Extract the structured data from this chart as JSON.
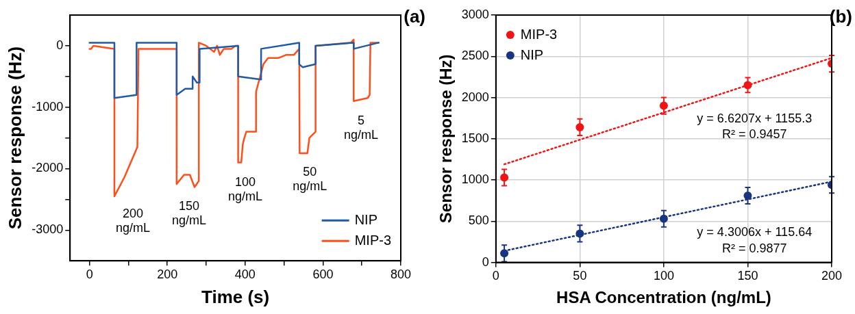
{
  "chart_data": [
    {
      "type": "line",
      "xlabel": "Time (s)",
      "ylabel": "Sensor response (Hz)",
      "xlim": [
        -50,
        800
      ],
      "xticks": [
        0,
        {
          "value": 100,
          "label": null
        },
        200,
        {
          "value": 300,
          "label": null
        },
        400,
        {
          "value": 500,
          "label": null
        },
        600,
        {
          "value": 700,
          "label": null
        },
        800
      ],
      "ylim": [
        -3500,
        500
      ],
      "yticks": [
        -3000,
        {
          "value": -2500,
          "label": null
        },
        -2000,
        {
          "value": -1500,
          "label": null
        },
        -1000,
        {
          "value": -500,
          "label": null
        },
        0
      ],
      "grid": false,
      "legend": "bottom right",
      "marker": "none",
      "line_style": "solid",
      "annotations": [
        "(a)",
        "200 ng/mL",
        "150 ng/mL",
        "100 ng/mL",
        "50 ng/mL",
        "5 ng/mL"
      ],
      "series": [
        {
          "name": "NIP",
          "color": "#1f5aa6",
          "x": [
            0,
            64,
            64,
            121,
            121,
            224,
            224,
            246,
            265,
            265,
            276,
            283,
            283,
            382,
            382,
            441,
            441,
            539,
            539,
            548,
            581,
            581,
            679,
            679,
            743
          ],
          "values": [
            50,
            50,
            -850,
            -800,
            50,
            50,
            -800,
            -700,
            -700,
            -500,
            -600,
            -600,
            -50,
            0,
            -500,
            -550,
            -50,
            50,
            -300,
            -350,
            -300,
            0,
            50,
            -50,
            50
          ]
        },
        {
          "name": "MIP-3",
          "color": "#ff4e1a",
          "x": [
            0,
            4,
            10,
            64,
            64,
            89,
            123,
            126,
            224,
            224,
            243,
            258,
            270,
            281,
            281,
            300,
            310,
            320,
            328,
            335,
            345,
            355,
            365,
            375,
            382,
            382,
            390,
            394,
            398,
            403,
            428,
            428,
            447,
            459,
            475,
            485,
            505,
            525,
            539,
            540,
            560,
            565,
            581,
            581,
            672,
            679,
            679,
            715,
            720,
            722,
            743
          ],
          "values": [
            -50,
            -50,
            0,
            -50,
            -2450,
            -2150,
            -1650,
            -50,
            -50,
            -2250,
            -2100,
            -2100,
            -2300,
            -2200,
            50,
            0,
            -50,
            -100,
            0,
            -150,
            -50,
            -50,
            -50,
            0,
            0,
            -1900,
            -1900,
            -1600,
            -1500,
            -1400,
            -1400,
            -750,
            -300,
            -200,
            -200,
            -200,
            -150,
            -150,
            -50,
            -1750,
            -1750,
            -1500,
            -1400,
            0,
            50,
            100,
            -900,
            -850,
            -800,
            50,
            50
          ]
        }
      ]
    },
    {
      "type": "scatter",
      "xlabel": "HSA Concentration (ng/mL)",
      "ylabel": "Sensor response (Hz)",
      "xlim": [
        0,
        200
      ],
      "xticks": [
        0,
        50,
        100,
        150,
        200
      ],
      "ylim": [
        0,
        3000
      ],
      "yticks": [
        0,
        500,
        1000,
        1500,
        2000,
        2500,
        3000
      ],
      "grid": true,
      "legend": "top left",
      "marker": "circle",
      "annotations": [
        "(b)",
        "y = 6.6207x + 1155.3",
        "R² = 0.9457",
        "y = 4.3006x + 115.64",
        "R² = 0.9877"
      ],
      "series": [
        {
          "name": "MIP-3",
          "color": "#f01414",
          "x": [
            5,
            50,
            100,
            150,
            200
          ],
          "values": [
            1030,
            1640,
            1900,
            2150,
            2410
          ],
          "errors": [
            100,
            100,
            100,
            90,
            100
          ]
        },
        {
          "name": "NIP",
          "color": "#1a3580",
          "x": [
            5,
            50,
            100,
            150,
            200
          ],
          "values": [
            110,
            350,
            530,
            810,
            940
          ],
          "errors": [
            100,
            100,
            100,
            100,
            100
          ]
        },
        {
          "type": "line",
          "color": "#f01414",
          "x": [
            5,
            200
          ],
          "values": [
            1190,
            2480
          ],
          "marker": "none",
          "line_style": "dotted"
        },
        {
          "type": "line",
          "color": "#1a3580",
          "x": [
            5,
            200
          ],
          "values": [
            140,
            980
          ],
          "marker": "none",
          "line_style": "dotted"
        }
      ]
    }
  ]
}
